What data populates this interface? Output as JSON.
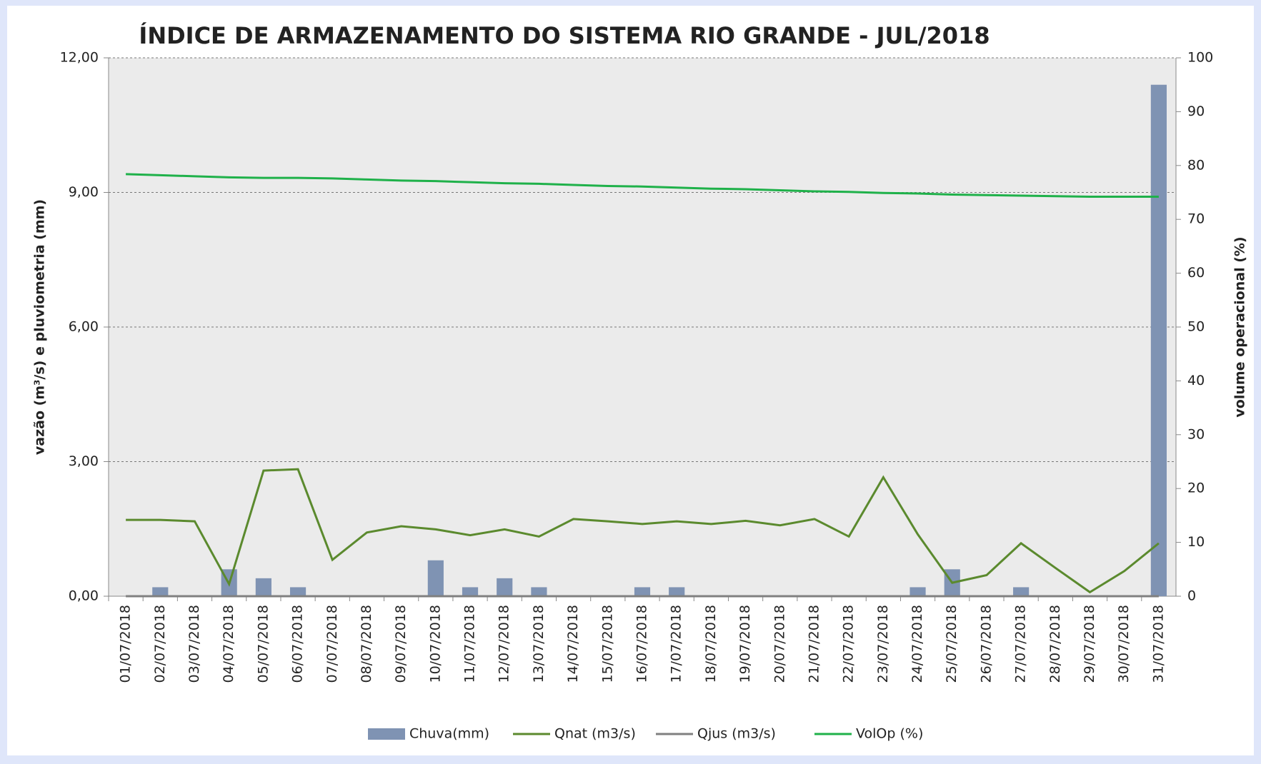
{
  "chart_data": {
    "type": "bar",
    "title": "ÍNDICE DE ARMAZENAMENTO DO SISTEMA RIO GRANDE - JUL/2018",
    "y_label": "vazão (m³/s) e pluviometria (mm)",
    "y2_label": "volume operacional (%)",
    "categories": [
      "01/07/2018",
      "02/07/2018",
      "03/07/2018",
      "04/07/2018",
      "05/07/2018",
      "06/07/2018",
      "07/07/2018",
      "08/07/2018",
      "09/07/2018",
      "10/07/2018",
      "11/07/2018",
      "12/07/2018",
      "13/07/2018",
      "14/07/2018",
      "15/07/2018",
      "16/07/2018",
      "17/07/2018",
      "18/07/2018",
      "19/07/2018",
      "20/07/2018",
      "21/07/2018",
      "22/07/2018",
      "23/07/2018",
      "24/07/2018",
      "25/07/2018",
      "26/07/2018",
      "27/07/2018",
      "28/07/2018",
      "29/07/2018",
      "30/07/2018",
      "31/07/2018"
    ],
    "series": [
      {
        "name": "Chuva(mm)",
        "type": "bar",
        "color": "#7f93b3",
        "values": [
          0,
          0.2,
          0,
          0.6,
          0.4,
          0.2,
          0,
          0,
          0,
          0.8,
          0.2,
          0.4,
          0.2,
          0,
          0,
          0.2,
          0.2,
          0,
          0,
          0,
          0,
          0,
          0,
          0.2,
          0.6,
          0,
          0.2,
          0,
          0,
          0,
          11.4
        ]
      },
      {
        "name": "Qnat (m3/s)",
        "type": "line",
        "color": "#5b8a2e",
        "values": [
          1.7,
          1.7,
          1.67,
          0.27,
          2.8,
          2.83,
          0.81,
          1.42,
          1.56,
          1.49,
          1.36,
          1.49,
          1.33,
          1.72,
          1.67,
          1.61,
          1.67,
          1.61,
          1.68,
          1.58,
          1.72,
          1.33,
          2.65,
          1.38,
          0.3,
          0.47,
          1.18,
          0.63,
          0.09,
          0.56,
          1.18
        ]
      },
      {
        "name": "Qjus (m3/s)",
        "type": "line",
        "color": "#808080",
        "values": [
          0,
          0,
          0,
          0,
          0,
          0,
          0,
          0,
          0,
          0,
          0,
          0,
          0,
          0,
          0,
          0,
          0,
          0,
          0,
          0,
          0,
          0,
          0,
          0,
          0,
          0,
          0,
          0,
          0,
          0,
          0
        ]
      },
      {
        "name": "VolOp (%)",
        "type": "line",
        "axis": "y2",
        "color": "#1fb14a",
        "values": [
          78.4,
          78.2,
          78.0,
          77.8,
          77.7,
          77.7,
          77.6,
          77.4,
          77.2,
          77.1,
          76.9,
          76.7,
          76.6,
          76.4,
          76.2,
          76.1,
          75.9,
          75.7,
          75.6,
          75.4,
          75.2,
          75.1,
          74.9,
          74.8,
          74.6,
          74.5,
          74.4,
          74.3,
          74.2,
          74.2,
          74.2
        ]
      }
    ],
    "ylim": [
      0,
      12
    ],
    "yticks": [
      {
        "value": 0,
        "label": "0,00"
      },
      {
        "value": 3,
        "label": "3,00"
      },
      {
        "value": 6,
        "label": "6,00"
      },
      {
        "value": 9,
        "label": "9,00"
      },
      {
        "value": 12,
        "label": "12,00"
      }
    ],
    "y2lim": [
      0,
      100
    ],
    "y2ticks": [
      0,
      10,
      20,
      30,
      40,
      50,
      60,
      70,
      80,
      90,
      100
    ],
    "grid": true,
    "legend": "bottom"
  }
}
